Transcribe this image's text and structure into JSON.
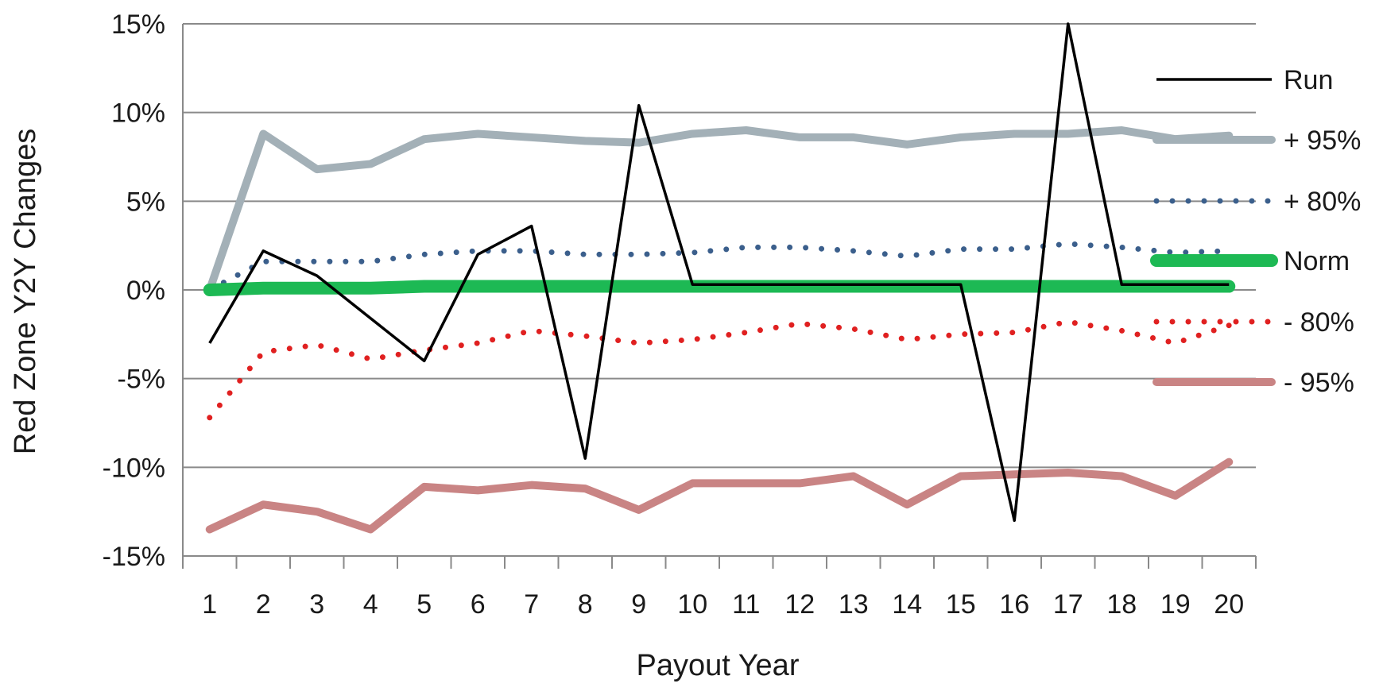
{
  "chart_data": {
    "type": "line",
    "title": "",
    "xlabel": "Payout Year",
    "ylabel": "Red Zone Y2Y Changes",
    "categories": [
      "1",
      "2",
      "3",
      "4",
      "5",
      "6",
      "7",
      "8",
      "9",
      "10",
      "11",
      "12",
      "13",
      "14",
      "15",
      "16",
      "17",
      "18",
      "19",
      "20"
    ],
    "ylim": [
      -15,
      15
    ],
    "yticks": [
      15,
      10,
      5,
      0,
      -5,
      -10,
      -15
    ],
    "ytick_labels": [
      "15%",
      "10%",
      "5%",
      "0%",
      "-5%",
      "-10%",
      "-15%"
    ],
    "grid": true,
    "legend_position": "right",
    "series": [
      {
        "name": "Run",
        "color": "#000000",
        "style": "solid",
        "values": [
          -3.0,
          2.2,
          0.8,
          -1.6,
          -4.0,
          2.0,
          3.6,
          -9.5,
          10.4,
          0.3,
          0.3,
          0.3,
          0.3,
          0.3,
          0.3,
          -13.0,
          15.0,
          0.3,
          0.3,
          0.3
        ]
      },
      {
        "name": "+ 95%",
        "color": "#a3b0b7",
        "style": "solid-thick",
        "values": [
          0.0,
          8.8,
          6.8,
          7.1,
          8.5,
          8.8,
          8.6,
          8.4,
          8.3,
          8.8,
          9.0,
          8.6,
          8.6,
          8.2,
          8.6,
          8.8,
          8.8,
          9.0,
          8.5,
          8.7
        ]
      },
      {
        "name": "+ 80%",
        "color": "#3b5f8c",
        "style": "dotted",
        "values": [
          0.0,
          1.6,
          1.6,
          1.6,
          2.0,
          2.2,
          2.2,
          2.0,
          2.0,
          2.1,
          2.4,
          2.4,
          2.2,
          1.9,
          2.3,
          2.3,
          2.6,
          2.4,
          2.1,
          2.2
        ]
      },
      {
        "name": "Norm",
        "color": "#1db954",
        "style": "solid-thick",
        "values": [
          0.0,
          0.1,
          0.1,
          0.1,
          0.2,
          0.2,
          0.2,
          0.2,
          0.2,
          0.2,
          0.2,
          0.2,
          0.2,
          0.2,
          0.2,
          0.2,
          0.2,
          0.2,
          0.2,
          0.2
        ]
      },
      {
        "name": "- 80%",
        "color": "#e02020",
        "style": "dotted",
        "values": [
          -7.2,
          -3.5,
          -3.1,
          -3.9,
          -3.4,
          -3.0,
          -2.3,
          -2.6,
          -3.0,
          -2.8,
          -2.4,
          -1.9,
          -2.2,
          -2.8,
          -2.5,
          -2.4,
          -1.8,
          -2.3,
          -3.0,
          -2.0
        ]
      },
      {
        "name": "- 95%",
        "color": "#c98484",
        "style": "solid-thick",
        "values": [
          -13.5,
          -12.1,
          -12.5,
          -13.5,
          -11.1,
          -11.3,
          -11.0,
          -11.2,
          -12.4,
          -10.9,
          -10.9,
          -10.9,
          -10.5,
          -12.1,
          -10.5,
          -10.4,
          -10.3,
          -10.5,
          -11.6,
          -9.7
        ]
      }
    ]
  }
}
